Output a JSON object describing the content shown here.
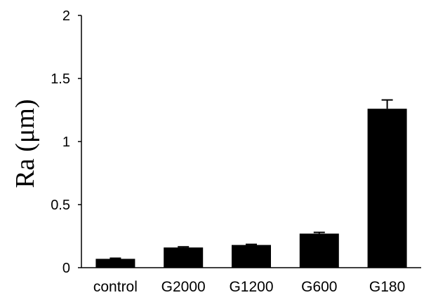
{
  "chart_data": {
    "type": "bar",
    "title": "",
    "xlabel": "",
    "ylabel": "Ra (μm)",
    "categories": [
      "control",
      "G2000",
      "G1200",
      "G600",
      "G180"
    ],
    "series": [
      {
        "values": [
          0.07,
          0.16,
          0.18,
          0.27,
          1.26
        ],
        "errors": [
          0.005,
          0.005,
          0.005,
          0.01,
          0.07
        ]
      }
    ],
    "yticks": [
      "0",
      "0.5",
      "1",
      "1.5",
      "2"
    ],
    "ylim": [
      0,
      2
    ],
    "grid": false,
    "legend": "none",
    "colors": {
      "bar": "#000000",
      "axis": "#000000"
    }
  }
}
